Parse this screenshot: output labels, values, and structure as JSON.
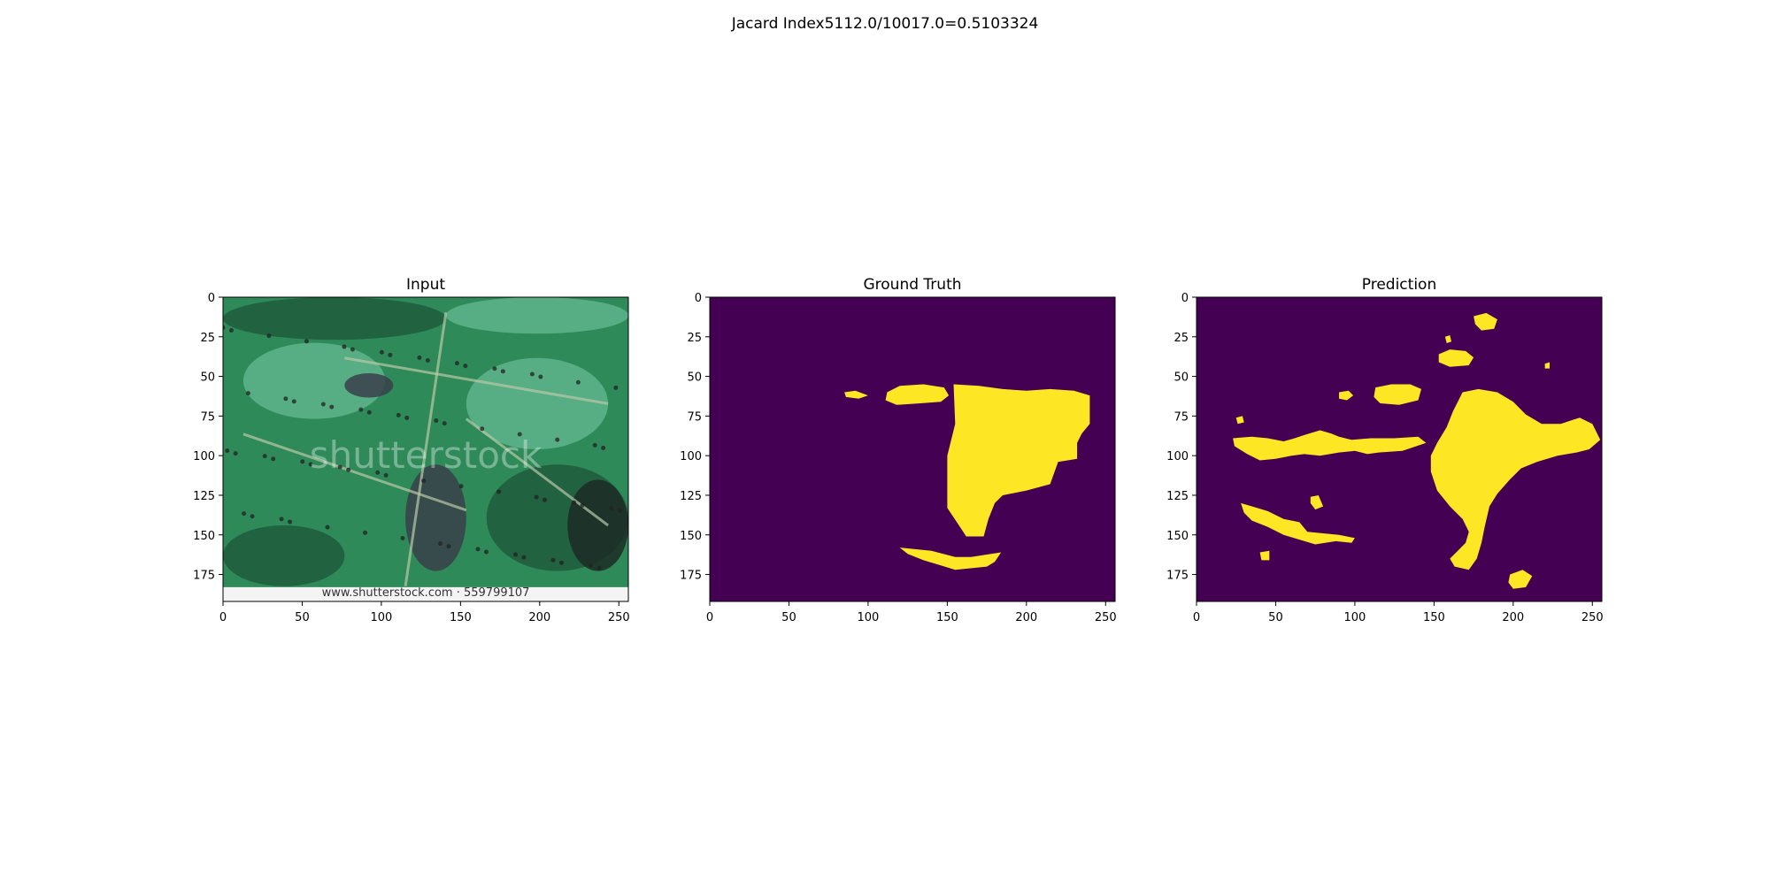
{
  "figure": {
    "suptitle": "Jacard Index5112.0/10017.0=0.5103324"
  },
  "colors": {
    "background": "#440154",
    "mask": "#fde725",
    "leaf_dark": "#1f5a3c",
    "leaf_mid": "#2f8a5a",
    "leaf_light": "#5fb48c",
    "spot": "#3a3f4a",
    "vein": "#b9c9a8"
  },
  "chart_data": [
    {
      "type": "image",
      "title": "Input",
      "xlim": [
        0,
        256
      ],
      "ylim": [
        192,
        0
      ],
      "xticks": [
        0,
        50,
        100,
        150,
        200,
        250
      ],
      "yticks": [
        0,
        25,
        50,
        75,
        100,
        125,
        150,
        175
      ],
      "watermark": "shutterstock",
      "footer": "www.shutterstock.com · 559799107"
    },
    {
      "type": "heatmap",
      "title": "Ground Truth",
      "xlim": [
        0,
        256
      ],
      "ylim": [
        192,
        0
      ],
      "xticks": [
        0,
        50,
        100,
        150,
        200,
        250
      ],
      "yticks": [
        0,
        25,
        50,
        75,
        100,
        125,
        150,
        175
      ],
      "regions": [
        {
          "name": "small-left",
          "points": [
            [
              85,
              60
            ],
            [
              92,
              59
            ],
            [
              100,
              62
            ],
            [
              94,
              64
            ],
            [
              86,
              63
            ]
          ]
        },
        {
          "name": "upper-blob",
          "points": [
            [
              112,
              60
            ],
            [
              120,
              56
            ],
            [
              135,
              55
            ],
            [
              148,
              57
            ],
            [
              151,
              62
            ],
            [
              146,
              66
            ],
            [
              133,
              67
            ],
            [
              118,
              68
            ],
            [
              111,
              65
            ]
          ]
        },
        {
          "name": "main-mask",
          "points": [
            [
              154,
              55
            ],
            [
              170,
              56
            ],
            [
              185,
              58
            ],
            [
              200,
              59
            ],
            [
              215,
              58
            ],
            [
              230,
              59
            ],
            [
              240,
              62
            ],
            [
              240,
              80
            ],
            [
              235,
              86
            ],
            [
              232,
              92
            ],
            [
              232,
              102
            ],
            [
              220,
              104
            ],
            [
              215,
              118
            ],
            [
              200,
              122
            ],
            [
              185,
              125
            ],
            [
              180,
              130
            ],
            [
              176,
              140
            ],
            [
              173,
              151
            ],
            [
              162,
              151
            ],
            [
              158,
              145
            ],
            [
              150,
              133
            ],
            [
              150,
              100
            ],
            [
              155,
              80
            ]
          ]
        },
        {
          "name": "lower-crescent",
          "points": [
            [
              120,
              158
            ],
            [
              140,
              160
            ],
            [
              155,
              164
            ],
            [
              165,
              164
            ],
            [
              184,
              161
            ],
            [
              180,
              167
            ],
            [
              175,
              170
            ],
            [
              155,
              172
            ],
            [
              145,
              169
            ],
            [
              135,
              166
            ],
            [
              125,
              162
            ]
          ]
        }
      ]
    },
    {
      "type": "heatmap",
      "title": "Prediction",
      "xlim": [
        0,
        256
      ],
      "ylim": [
        192,
        0
      ],
      "xticks": [
        0,
        50,
        100,
        150,
        200,
        250
      ],
      "yticks": [
        0,
        25,
        50,
        75,
        100,
        125,
        150,
        175
      ],
      "regions": [
        {
          "name": "top-small",
          "points": [
            [
              175,
              12
            ],
            [
              183,
              10
            ],
            [
              190,
              14
            ],
            [
              188,
              20
            ],
            [
              180,
              21
            ],
            [
              176,
              17
            ]
          ]
        },
        {
          "name": "dot-a",
          "points": [
            [
              157,
              25
            ],
            [
              160,
              24
            ],
            [
              161,
              28
            ],
            [
              158,
              29
            ]
          ]
        },
        {
          "name": "dot-b",
          "points": [
            [
              220,
              42
            ],
            [
              223,
              41
            ],
            [
              223,
              45
            ],
            [
              220,
              45
            ]
          ]
        },
        {
          "name": "upper-oval",
          "points": [
            [
              153,
              36
            ],
            [
              160,
              33
            ],
            [
              170,
              34
            ],
            [
              175,
              38
            ],
            [
              172,
              43
            ],
            [
              160,
              44
            ],
            [
              153,
              41
            ]
          ]
        },
        {
          "name": "small-oval",
          "points": [
            [
              90,
              60
            ],
            [
              96,
              59
            ],
            [
              99,
              62
            ],
            [
              95,
              65
            ],
            [
              90,
              64
            ]
          ]
        },
        {
          "name": "mid-oval",
          "points": [
            [
              113,
              57
            ],
            [
              123,
              55
            ],
            [
              135,
              55
            ],
            [
              142,
              58
            ],
            [
              140,
              65
            ],
            [
              128,
              68
            ],
            [
              116,
              67
            ],
            [
              112,
              63
            ]
          ]
        },
        {
          "name": "left-dot",
          "points": [
            [
              25,
              76
            ],
            [
              29,
              75
            ],
            [
              30,
              79
            ],
            [
              26,
              80
            ]
          ]
        },
        {
          "name": "left-streak",
          "points": [
            [
              23,
              89
            ],
            [
              35,
              88
            ],
            [
              45,
              89
            ],
            [
              55,
              91
            ],
            [
              62,
              89
            ],
            [
              68,
              87
            ],
            [
              78,
              84
            ],
            [
              85,
              86
            ],
            [
              90,
              88
            ],
            [
              98,
              90
            ],
            [
              110,
              89
            ],
            [
              125,
              89
            ],
            [
              140,
              88
            ],
            [
              145,
              92
            ],
            [
              130,
              97
            ],
            [
              115,
              98
            ],
            [
              108,
              99
            ],
            [
              100,
              97
            ],
            [
              90,
              98
            ],
            [
              78,
              100
            ],
            [
              68,
              99
            ],
            [
              60,
              100
            ],
            [
              50,
              102
            ],
            [
              40,
              103
            ],
            [
              32,
              99
            ],
            [
              24,
              94
            ]
          ]
        },
        {
          "name": "left-lower",
          "points": [
            [
              28,
              130
            ],
            [
              35,
              132
            ],
            [
              45,
              135
            ],
            [
              55,
              140
            ],
            [
              65,
              142
            ],
            [
              70,
              148
            ],
            [
              80,
              149
            ],
            [
              90,
              150
            ],
            [
              100,
              152
            ],
            [
              98,
              155
            ],
            [
              88,
              154
            ],
            [
              75,
              156
            ],
            [
              65,
              153
            ],
            [
              55,
              150
            ],
            [
              45,
              145
            ],
            [
              35,
              141
            ],
            [
              30,
              136
            ]
          ]
        },
        {
          "name": "upper-left-stub",
          "points": [
            [
              72,
              126
            ],
            [
              77,
              125
            ],
            [
              80,
              132
            ],
            [
              75,
              134
            ],
            [
              72,
              130
            ]
          ]
        },
        {
          "name": "tiny-dot",
          "points": [
            [
              40,
              161
            ],
            [
              46,
              160
            ],
            [
              46,
              166
            ],
            [
              41,
              166
            ]
          ]
        },
        {
          "name": "main-mask",
          "points": [
            [
              168,
              60
            ],
            [
              178,
              58
            ],
            [
              190,
              60
            ],
            [
              200,
              66
            ],
            [
              208,
              74
            ],
            [
              218,
              80
            ],
            [
              230,
              80
            ],
            [
              242,
              76
            ],
            [
              250,
              80
            ],
            [
              255,
              90
            ],
            [
              248,
              96
            ],
            [
              240,
              98
            ],
            [
              228,
              100
            ],
            [
              215,
              104
            ],
            [
              205,
              108
            ],
            [
              198,
              115
            ],
            [
              190,
              124
            ],
            [
              185,
              132
            ],
            [
              182,
              145
            ],
            [
              180,
              155
            ],
            [
              177,
              165
            ],
            [
              172,
              172
            ],
            [
              163,
              170
            ],
            [
              160,
              165
            ],
            [
              165,
              160
            ],
            [
              170,
              155
            ],
            [
              172,
              148
            ],
            [
              168,
              140
            ],
            [
              160,
              132
            ],
            [
              152,
              122
            ],
            [
              148,
              110
            ],
            [
              148,
              100
            ],
            [
              152,
              92
            ],
            [
              158,
              82
            ],
            [
              162,
              72
            ]
          ]
        },
        {
          "name": "bottom-blob",
          "points": [
            [
              198,
              175
            ],
            [
              206,
              172
            ],
            [
              212,
              176
            ],
            [
              208,
              183
            ],
            [
              200,
              184
            ],
            [
              197,
              180
            ]
          ]
        }
      ]
    }
  ]
}
